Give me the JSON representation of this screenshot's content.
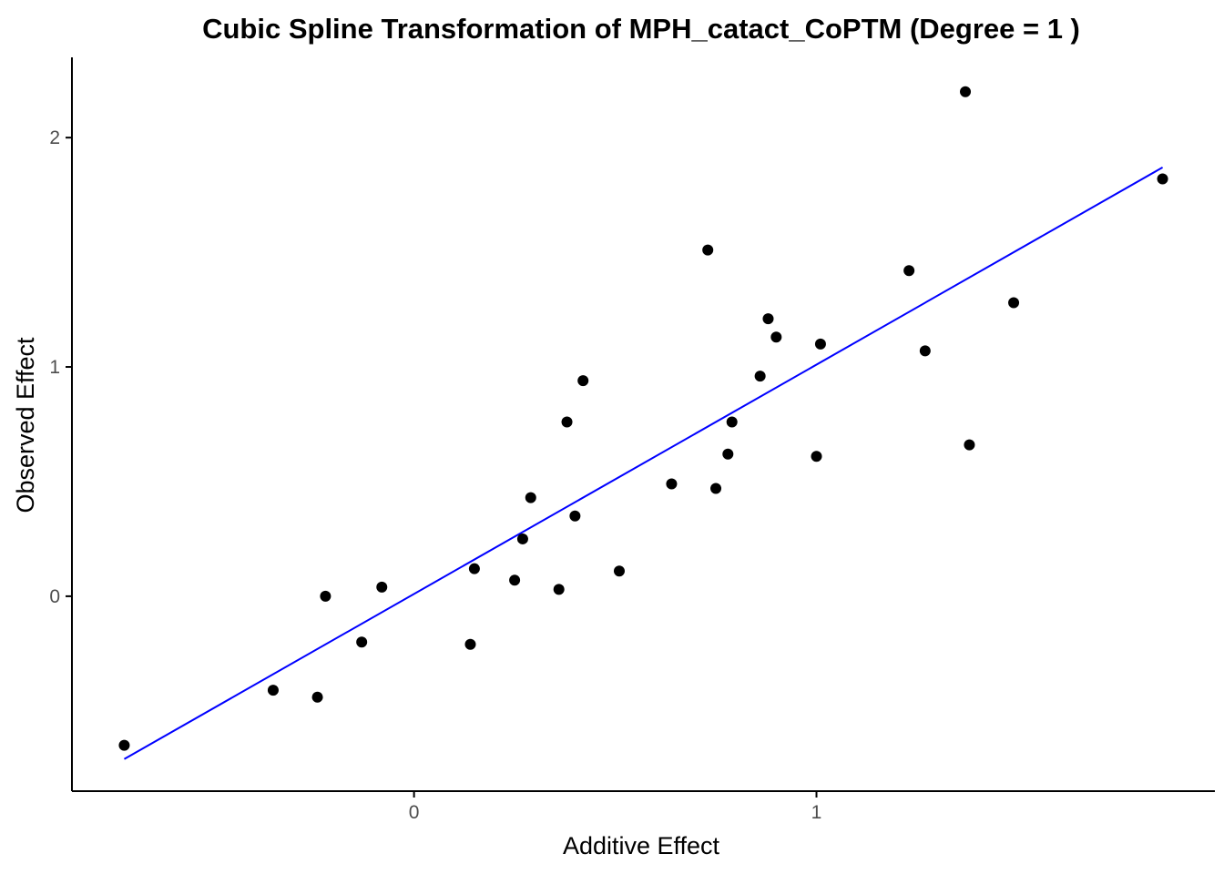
{
  "chart_data": {
    "type": "scatter",
    "title": "Cubic Spline Transformation of MPH_catact_CoPTM (Degree = 1 )",
    "xlabel": "Additive Effect",
    "ylabel": "Observed Effect",
    "xlim": [
      -0.85,
      1.99
    ],
    "ylim": [
      -0.85,
      2.35
    ],
    "x_ticks": [
      0,
      1
    ],
    "x_tick_labels": [
      "0",
      "1"
    ],
    "y_ticks": [
      0,
      1,
      2
    ],
    "y_tick_labels": [
      "0",
      "1",
      "2"
    ],
    "grid": false,
    "legend": "none",
    "colors": {
      "points": "#000000",
      "line": "#0000ff",
      "axis": "#000000",
      "tick_text": "#4d4d4d"
    },
    "series": [
      {
        "type": "points",
        "points": [
          {
            "x": -0.72,
            "y": -0.65
          },
          {
            "x": -0.35,
            "y": -0.41
          },
          {
            "x": -0.24,
            "y": -0.44
          },
          {
            "x": -0.22,
            "y": 0.0
          },
          {
            "x": -0.13,
            "y": -0.2
          },
          {
            "x": -0.08,
            "y": 0.04
          },
          {
            "x": 0.14,
            "y": -0.21
          },
          {
            "x": 0.15,
            "y": 0.12
          },
          {
            "x": 0.25,
            "y": 0.07
          },
          {
            "x": 0.27,
            "y": 0.25
          },
          {
            "x": 0.29,
            "y": 0.43
          },
          {
            "x": 0.36,
            "y": 0.03
          },
          {
            "x": 0.38,
            "y": 0.76
          },
          {
            "x": 0.4,
            "y": 0.35
          },
          {
            "x": 0.42,
            "y": 0.94
          },
          {
            "x": 0.51,
            "y": 0.11
          },
          {
            "x": 0.64,
            "y": 0.49
          },
          {
            "x": 0.73,
            "y": 1.51
          },
          {
            "x": 0.75,
            "y": 0.47
          },
          {
            "x": 0.78,
            "y": 0.62
          },
          {
            "x": 0.79,
            "y": 0.76
          },
          {
            "x": 0.86,
            "y": 0.96
          },
          {
            "x": 0.88,
            "y": 1.21
          },
          {
            "x": 0.9,
            "y": 1.13
          },
          {
            "x": 1.0,
            "y": 0.61
          },
          {
            "x": 1.01,
            "y": 1.1
          },
          {
            "x": 1.23,
            "y": 1.42
          },
          {
            "x": 1.27,
            "y": 1.07
          },
          {
            "x": 1.37,
            "y": 2.2
          },
          {
            "x": 1.38,
            "y": 0.66
          },
          {
            "x": 1.49,
            "y": 1.28
          },
          {
            "x": 1.86,
            "y": 1.82
          }
        ]
      },
      {
        "type": "line",
        "points": [
          {
            "x": -0.72,
            "y": -0.71
          },
          {
            "x": 1.86,
            "y": 1.87
          }
        ]
      }
    ]
  }
}
